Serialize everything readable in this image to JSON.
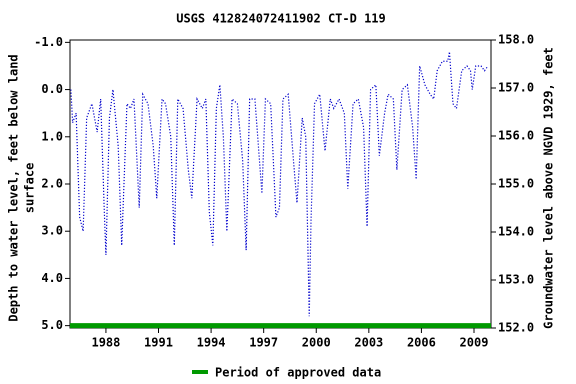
{
  "chart_data": {
    "type": "line",
    "title": "USGS 412824072411902  CT-D    119",
    "y_label": [
      "Depth to water level, feet below land",
      "surface"
    ],
    "y2_label": "Groundwater level above NGVD 1929, feet",
    "xlim": [
      1985.95,
      2009.97
    ],
    "xticks": [
      1988,
      1991,
      1994,
      1997,
      2000,
      2003,
      2006,
      2009
    ],
    "ylim": [
      5.05,
      -1.05
    ],
    "yticks": [
      {
        "value": -1.0,
        "label": "-1.0"
      },
      {
        "value": 0.0,
        "label": "0.0"
      },
      {
        "value": 1.0,
        "label": "1.0"
      },
      {
        "value": 2.0,
        "label": "2.0"
      },
      {
        "value": 3.0,
        "label": "3.0"
      },
      {
        "value": 4.0,
        "label": "4.0"
      },
      {
        "value": 5.0,
        "label": "5.0"
      }
    ],
    "y2lim": [
      152.0,
      158.0
    ],
    "y2ticks": [
      {
        "value": 152.0,
        "label": "152.0"
      },
      {
        "value": 153.0,
        "label": "153.0"
      },
      {
        "value": 154.0,
        "label": "154.0"
      },
      {
        "value": 155.0,
        "label": "155.0"
      },
      {
        "value": 156.0,
        "label": "156.0"
      },
      {
        "value": 157.0,
        "label": "157.0"
      },
      {
        "value": 158.0,
        "label": "158.0"
      }
    ],
    "series": [
      {
        "color": "#0000cc",
        "x": [
          1986.0,
          1986.1,
          1986.3,
          1986.5,
          1986.7,
          1986.9,
          1987.2,
          1987.5,
          1987.7,
          1987.9,
          1988.0,
          1988.2,
          1988.4,
          1988.7,
          1988.9,
          1989.2,
          1989.4,
          1989.6,
          1989.9,
          1990.1,
          1990.4,
          1990.7,
          1990.9,
          1991.2,
          1991.4,
          1991.7,
          1991.9,
          1992.1,
          1992.4,
          1992.7,
          1992.9,
          1993.2,
          1993.5,
          1993.7,
          1993.9,
          1994.1,
          1994.3,
          1994.5,
          1994.7,
          1994.9,
          1995.2,
          1995.5,
          1995.8,
          1996.0,
          1996.2,
          1996.5,
          1996.7,
          1996.9,
          1997.1,
          1997.4,
          1997.7,
          1997.9,
          1998.1,
          1998.4,
          1998.7,
          1998.9,
          1999.2,
          1999.4,
          1999.6,
          1999.7,
          1999.9,
          2000.2,
          2000.5,
          2000.8,
          2001.0,
          2001.3,
          2001.6,
          2001.8,
          2002.1,
          2002.4,
          2002.7,
          2002.9,
          2003.1,
          2003.4,
          2003.6,
          2003.9,
          2004.1,
          2004.4,
          2004.6,
          2004.9,
          2005.2,
          2005.5,
          2005.7,
          2005.9,
          2006.2,
          2006.5,
          2006.7,
          2006.9,
          2007.2,
          2007.5,
          2007.6,
          2007.8,
          2008.0,
          2008.3,
          2008.6,
          2008.8,
          2008.9,
          2009.1,
          2009.4,
          2009.6,
          2009.8
        ],
        "values": [
          0.0,
          0.7,
          0.5,
          2.7,
          3.0,
          0.6,
          0.3,
          0.9,
          0.2,
          2.5,
          3.5,
          0.6,
          0.0,
          1.2,
          3.3,
          0.3,
          0.4,
          0.2,
          2.5,
          0.1,
          0.3,
          1.2,
          2.3,
          0.2,
          0.3,
          1.0,
          3.3,
          0.2,
          0.4,
          1.7,
          2.3,
          0.2,
          0.4,
          0.2,
          2.6,
          3.3,
          0.4,
          -0.1,
          1.0,
          3.0,
          0.2,
          0.3,
          1.5,
          3.4,
          0.2,
          0.2,
          1.2,
          2.2,
          0.2,
          0.3,
          2.7,
          2.5,
          0.2,
          0.1,
          1.5,
          2.4,
          0.6,
          1.0,
          4.8,
          2.8,
          0.3,
          0.1,
          1.3,
          0.2,
          0.4,
          0.2,
          0.5,
          2.1,
          0.3,
          0.2,
          0.8,
          2.9,
          0.0,
          -0.1,
          1.4,
          0.5,
          0.1,
          0.2,
          1.7,
          0.0,
          -0.1,
          0.8,
          1.9,
          -0.5,
          -0.1,
          0.1,
          0.2,
          -0.4,
          -0.6,
          -0.6,
          -0.8,
          0.3,
          0.4,
          -0.4,
          -0.5,
          -0.4,
          0.0,
          -0.5,
          -0.5,
          -0.4,
          -0.5
        ]
      }
    ],
    "approved": {
      "label": "Period of approved data",
      "color": "#009900",
      "x": [
        1985.95,
        2009.97
      ],
      "y": 5.0
    }
  }
}
